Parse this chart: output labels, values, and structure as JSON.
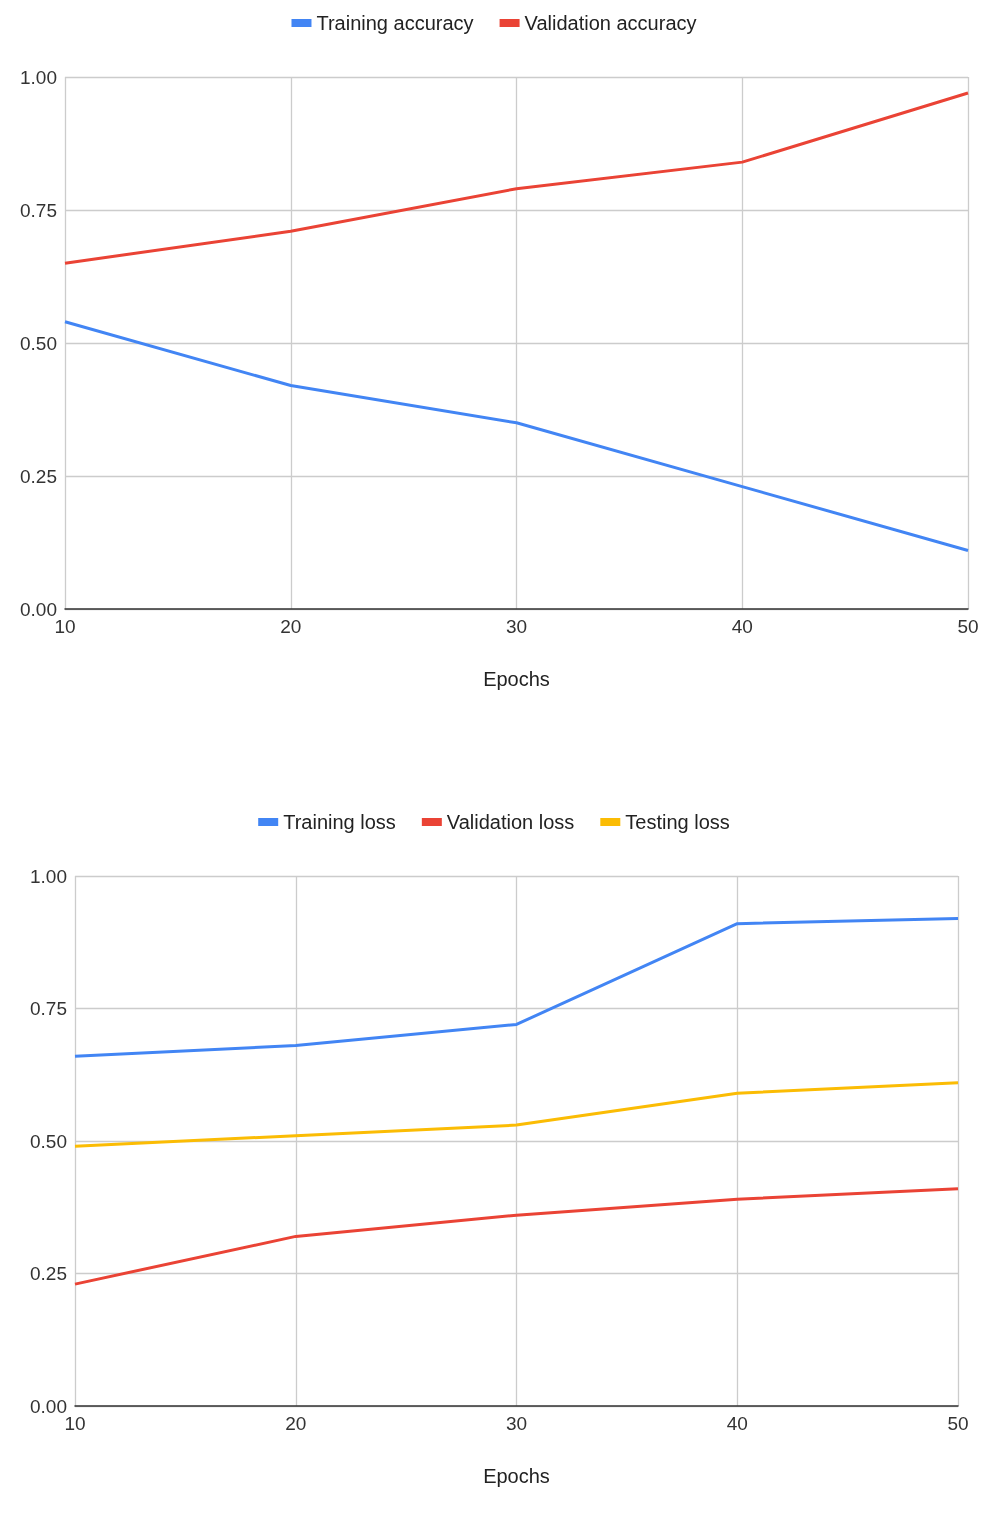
{
  "chart_data": [
    {
      "type": "line",
      "x": [
        10,
        20,
        30,
        40,
        50
      ],
      "xlabel": "Epochs",
      "xlim": [
        10,
        50
      ],
      "xticks": [
        10,
        20,
        30,
        40,
        50
      ],
      "ylim": [
        0,
        1
      ],
      "yticks": [
        {
          "value": 0,
          "label": "0.00"
        },
        {
          "value": 0.25,
          "label": "0.25"
        },
        {
          "value": 0.5,
          "label": "0.50"
        },
        {
          "value": 0.75,
          "label": "0.75"
        },
        {
          "value": 1,
          "label": "1.00"
        }
      ],
      "grid": true,
      "legend": "top",
      "marker": "none",
      "series": [
        {
          "name": "Training accuracy",
          "color": "#4285f4",
          "values": [
            0.54,
            0.42,
            0.35,
            0.23,
            0.11
          ]
        },
        {
          "name": "Validation accuracy",
          "color": "#ea4335",
          "values": [
            0.65,
            0.71,
            0.79,
            0.84,
            0.97
          ]
        }
      ]
    },
    {
      "type": "line",
      "x": [
        10,
        20,
        30,
        40,
        50
      ],
      "xlabel": "Epochs",
      "xlim": [
        10,
        50
      ],
      "xticks": [
        10,
        20,
        30,
        40,
        50
      ],
      "ylim": [
        0,
        1
      ],
      "yticks": [
        {
          "value": 0,
          "label": "0.00"
        },
        {
          "value": 0.25,
          "label": "0.25"
        },
        {
          "value": 0.5,
          "label": "0.50"
        },
        {
          "value": 0.75,
          "label": "0.75"
        },
        {
          "value": 1,
          "label": "1.00"
        }
      ],
      "grid": true,
      "legend": "top",
      "marker": "none",
      "series": [
        {
          "name": "Training loss",
          "color": "#4285f4",
          "values": [
            0.66,
            0.68,
            0.72,
            0.91,
            0.92
          ]
        },
        {
          "name": "Validation loss",
          "color": "#ea4335",
          "values": [
            0.23,
            0.32,
            0.36,
            0.39,
            0.41
          ]
        },
        {
          "name": "Testing loss",
          "color": "#fbbc04",
          "values": [
            0.49,
            0.51,
            0.53,
            0.59,
            0.61
          ]
        }
      ]
    }
  ]
}
